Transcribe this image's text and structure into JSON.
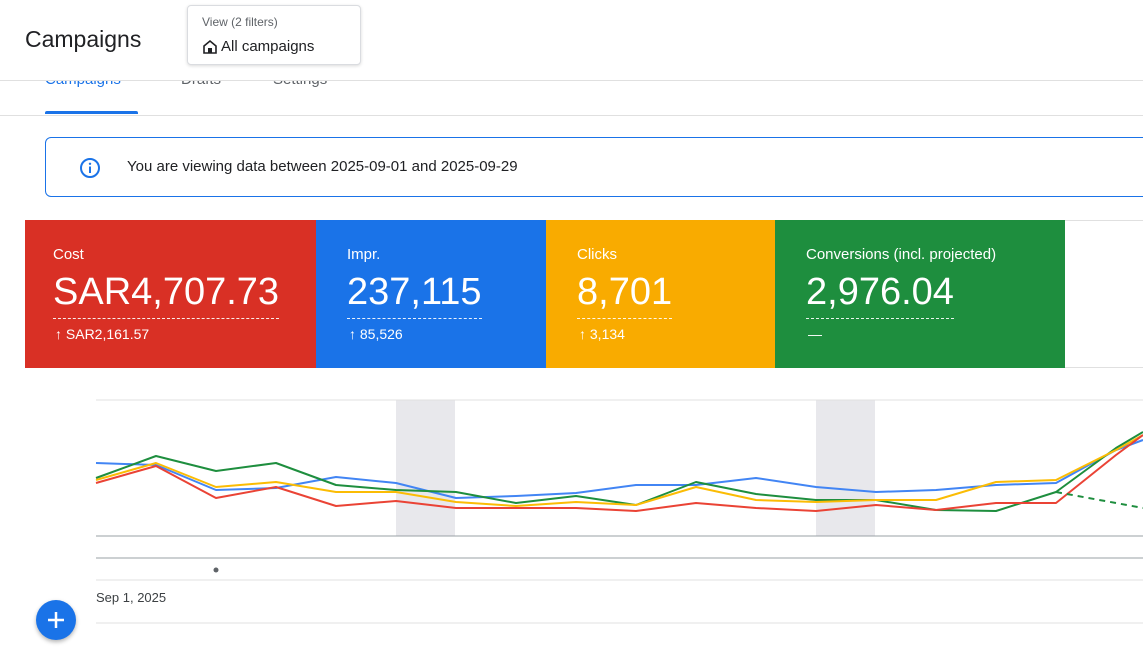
{
  "header": {
    "title": "Campaigns",
    "view_filter": {
      "label": "View (2 filters)",
      "value": "All campaigns"
    }
  },
  "tabs": [
    "Campaigns",
    "Drafts",
    "Settings"
  ],
  "banner": {
    "text": "You are viewing data between 2025-09-01 and 2025-09-29"
  },
  "metrics": [
    {
      "label": "Cost",
      "value": "SAR4,707.73",
      "change": "↑ SAR2,161.57"
    },
    {
      "label": "Impr.",
      "value": "237,115",
      "change": "↑ 85,526"
    },
    {
      "label": "Clicks",
      "value": "8,701",
      "change": "↑ 3,134"
    },
    {
      "label": "Conversions (incl. projected)",
      "value": "2,976.04",
      "change": "—"
    }
  ],
  "chart": {
    "x_start_label": "Sep 1, 2025"
  }
}
